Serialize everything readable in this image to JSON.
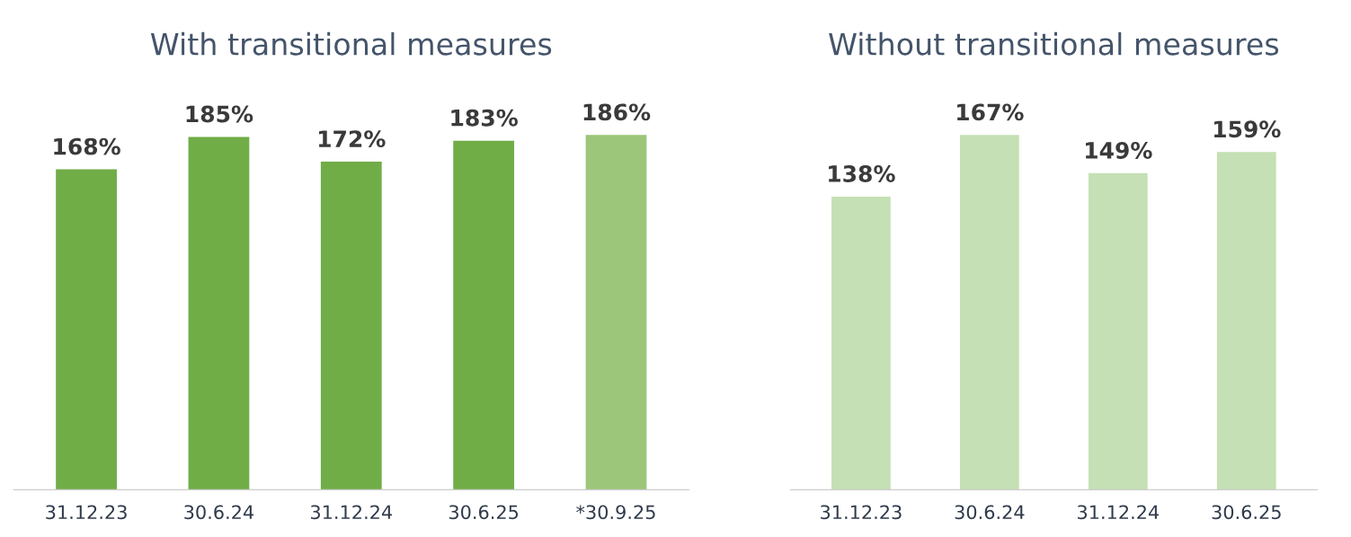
{
  "chart_data": [
    {
      "type": "bar",
      "title": "With transitional measures",
      "categories": [
        "31.12.23",
        "30.6.24",
        "31.12.24",
        "30.6.25",
        "*30.9.25"
      ],
      "values": [
        168,
        185,
        172,
        183,
        186
      ],
      "colors": [
        "#70ad47",
        "#70ad47",
        "#70ad47",
        "#70ad47",
        "#9cc67a"
      ],
      "value_labels": [
        "168%",
        "185%",
        "172%",
        "183%",
        "186%"
      ],
      "tick_labels": "x",
      "grid": false,
      "legend": false
    },
    {
      "type": "bar",
      "title": "Without transitional measures",
      "categories": [
        "31.12.23",
        "30.6.24",
        "31.12.24",
        "30.6.25"
      ],
      "values": [
        138,
        167,
        149,
        159
      ],
      "colors": [
        "#c5e0b4",
        "#c5e0b4",
        "#c5e0b4",
        "#c5e0b4"
      ],
      "value_labels": [
        "138%",
        "167%",
        "149%",
        "159%"
      ],
      "tick_labels": "x",
      "grid": false,
      "legend": false
    }
  ]
}
